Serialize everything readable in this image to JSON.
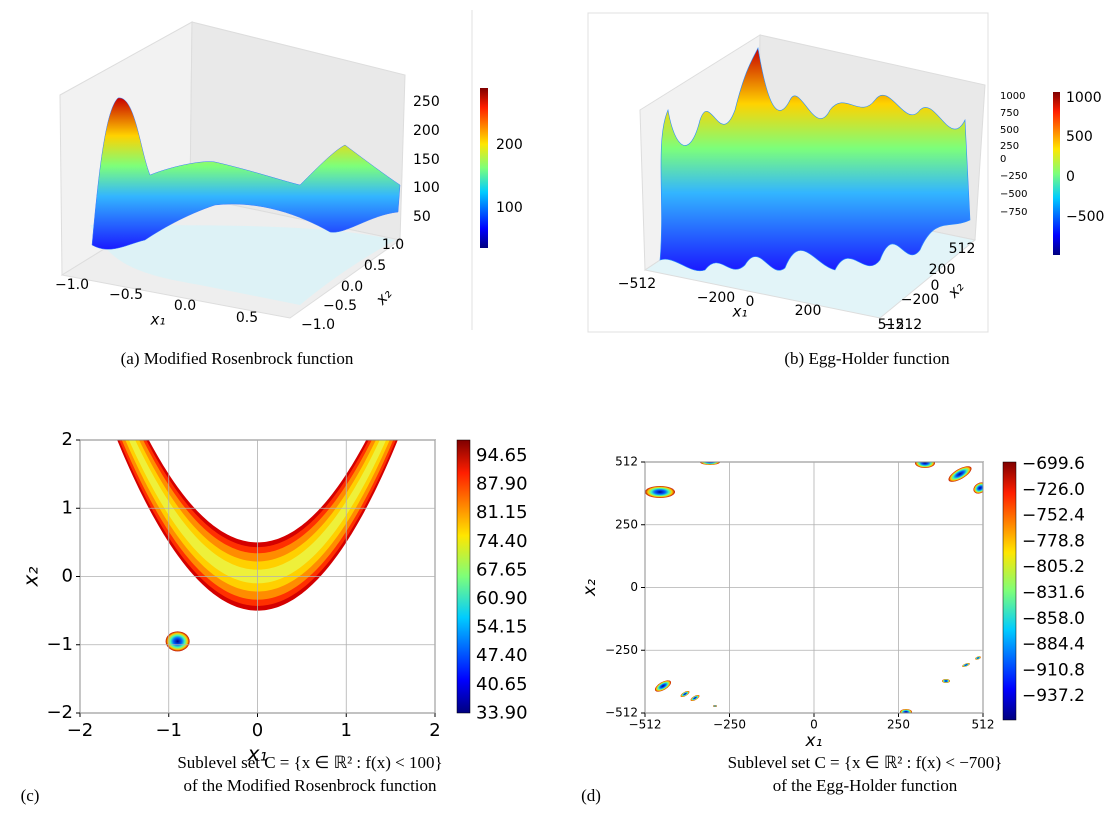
{
  "panels": [
    {
      "caption": "(a) Modified Rosenbrock function",
      "x_label": "x₁",
      "y_label": "x₂",
      "x_ticks": [
        "−1.0",
        "−0.5",
        "0.0",
        "0.5"
      ],
      "y_ticks": [
        "1.0",
        "0.5",
        "0.0",
        "−0.5",
        "−1.0"
      ],
      "z_ticks": [
        "250",
        "200",
        "150",
        "100",
        "50"
      ],
      "colorbar_ticks": [
        "200",
        "100"
      ]
    },
    {
      "caption": "(b) Egg-Holder function",
      "x_label": "x₁",
      "y_label": "x₂",
      "x_ticks": [
        "−512",
        "−200",
        "0",
        "200",
        "512"
      ],
      "y_ticks": [
        "512",
        "200",
        "0",
        "−200",
        "−512"
      ],
      "z_ticks": [
        "1000",
        "750",
        "500",
        "250",
        "0",
        "−250",
        "−500",
        "−750"
      ],
      "colorbar_ticks": [
        "1000",
        "500",
        "0",
        "−500"
      ]
    },
    {
      "tag": "(c)",
      "caption_lines": [
        "Sublevel set C = {x ∈ ℝ² : f(x) < 100}",
        "of the Modified Rosenbrock function"
      ],
      "x_label": "x₁",
      "y_label": "x₂",
      "x_ticks": [
        "−2",
        "−1",
        "0",
        "1",
        "2"
      ],
      "y_ticks": [
        "2",
        "1",
        "0",
        "−1",
        "−2"
      ],
      "colorbar_ticks": [
        "94.65",
        "87.90",
        "81.15",
        "74.40",
        "67.65",
        "60.90",
        "54.15",
        "47.40",
        "40.65",
        "33.90"
      ]
    },
    {
      "tag": "(d)",
      "caption_lines": [
        "Sublevel set C = {x ∈ ℝ² : f(x) < −700}",
        "of the Egg-Holder function"
      ],
      "x_label": "x₁",
      "y_label": "x₂",
      "x_ticks": [
        "−512",
        "−250",
        "0",
        "250",
        "512"
      ],
      "y_ticks": [
        "512",
        "250",
        "0",
        "−250",
        "−512"
      ],
      "colorbar_ticks": [
        "−699.6",
        "−726.0",
        "−752.4",
        "−778.8",
        "−805.2",
        "−831.6",
        "−858.0",
        "−884.4",
        "−910.8",
        "−937.2"
      ]
    }
  ]
}
